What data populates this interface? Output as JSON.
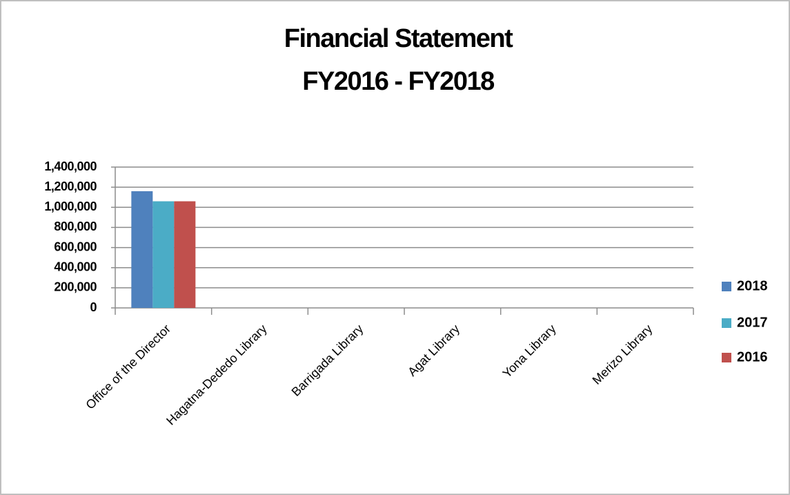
{
  "chart_data": {
    "type": "bar",
    "title": "Financial Statement",
    "subtitle": "FY2016 - FY2018",
    "categories": [
      "Office of the Director",
      "Hagatna-Dededo Library",
      "Barrigada Library",
      "Agat Library",
      "Yona Library",
      "Merizo Library"
    ],
    "series": [
      {
        "name": "2018",
        "color": "#4f81bd",
        "values": [
          1160000,
          0,
          0,
          0,
          0,
          0
        ]
      },
      {
        "name": "2017",
        "color": "#4bacc6",
        "values": [
          1060000,
          0,
          0,
          0,
          0,
          0
        ]
      },
      {
        "name": "2016",
        "color": "#c0504d",
        "values": [
          1060000,
          0,
          0,
          0,
          0,
          0
        ]
      }
    ],
    "ylim": [
      0,
      1400000
    ],
    "yticks": [
      0,
      {
        "value": 200000,
        "label": "200,000"
      },
      {
        "value": 400000,
        "label": "400,000"
      },
      {
        "value": 600000,
        "label": "600,000"
      },
      {
        "value": 800000,
        "label": "800,000"
      },
      {
        "value": 1000000,
        "label": "1,000,000"
      },
      {
        "value": 1200000,
        "label": "1,200,000"
      },
      {
        "value": 1400000,
        "label": "1,400,000"
      }
    ],
    "grid": true,
    "legend": "right"
  }
}
